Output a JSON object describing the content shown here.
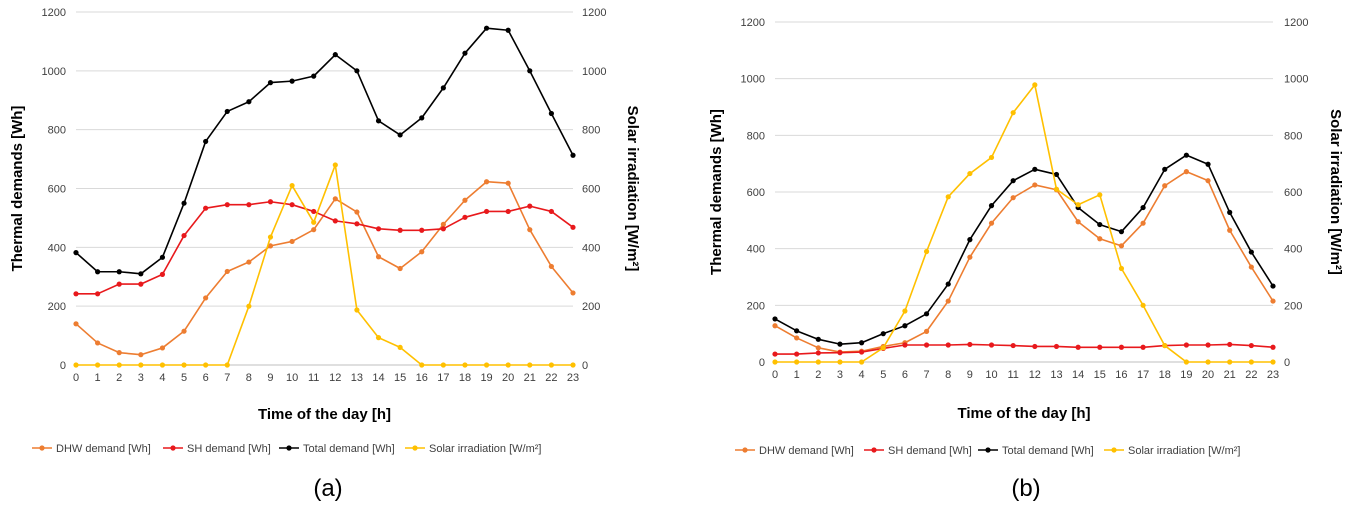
{
  "colors": {
    "dhw": "#ed7d31",
    "sh": "#e8191c",
    "total": "#000000",
    "solar": "#ffc000"
  },
  "chart_data": [
    {
      "type": "line",
      "panel_label": "(a)",
      "xlabel": "Time of the day [h]",
      "ylabel": "Thermal demands [Wh]",
      "y2label": "Solar irradiation [W/m²]",
      "categories": [
        "0",
        "1",
        "2",
        "3",
        "4",
        "5",
        "6",
        "7",
        "8",
        "9",
        "10",
        "11",
        "12",
        "13",
        "14",
        "15",
        "16",
        "17",
        "18",
        "19",
        "20",
        "21",
        "22",
        "23"
      ],
      "ylim": [
        0,
        1200
      ],
      "y2lim": [
        0,
        1200
      ],
      "yticks": [
        0,
        200,
        400,
        600,
        800,
        1000,
        1200
      ],
      "grid": true,
      "legend_position": "bottom",
      "series": [
        {
          "name": "DHW demand [Wh]",
          "color_key": "dhw",
          "axis": "left",
          "values": [
            140,
            75,
            42,
            35,
            58,
            115,
            228,
            318,
            350,
            405,
            420,
            460,
            565,
            520,
            368,
            328,
            385,
            478,
            560,
            623,
            618,
            460,
            335,
            245
          ]
        },
        {
          "name": "SH demand [Wh]",
          "color_key": "sh",
          "axis": "left",
          "values": [
            242,
            242,
            275,
            275,
            308,
            440,
            533,
            545,
            545,
            555,
            545,
            522,
            490,
            480,
            463,
            458,
            458,
            463,
            502,
            522,
            522,
            540,
            522,
            468
          ]
        },
        {
          "name": "Total demand [Wh]",
          "color_key": "total",
          "axis": "left",
          "values": [
            382,
            317,
            317,
            310,
            366,
            550,
            760,
            862,
            895,
            960,
            965,
            982,
            1055,
            1000,
            830,
            782,
            840,
            942,
            1060,
            1145,
            1138,
            1000,
            855,
            713
          ]
        },
        {
          "name": "Solar irradiation [W/m²]",
          "color_key": "solar",
          "axis": "right",
          "values": [
            0,
            0,
            0,
            0,
            0,
            0,
            0,
            0,
            200,
            435,
            610,
            485,
            680,
            187,
            93,
            60,
            0,
            0,
            0,
            0,
            0,
            0,
            0,
            0
          ]
        }
      ]
    },
    {
      "type": "line",
      "panel_label": "(b)",
      "xlabel": "Time of the day [h]",
      "ylabel": "Thermal demands [Wh]",
      "y2label": "Solar irradiation [W/m²]",
      "categories": [
        "0",
        "1",
        "2",
        "3",
        "4",
        "5",
        "6",
        "7",
        "8",
        "9",
        "10",
        "11",
        "12",
        "13",
        "14",
        "15",
        "16",
        "17",
        "18",
        "19",
        "20",
        "21",
        "22",
        "23"
      ],
      "ylim": [
        0,
        1200
      ],
      "y2lim": [
        0,
        1200
      ],
      "yticks": [
        0,
        200,
        400,
        600,
        800,
        1000,
        1200
      ],
      "grid": true,
      "legend_position": "bottom",
      "series": [
        {
          "name": "DHW demand [Wh]",
          "color_key": "dhw",
          "axis": "left",
          "values": [
            128,
            85,
            50,
            35,
            38,
            55,
            68,
            108,
            215,
            370,
            490,
            580,
            625,
            608,
            495,
            435,
            410,
            490,
            622,
            672,
            640,
            465,
            335,
            215
          ]
        },
        {
          "name": "SH demand [Wh]",
          "color_key": "sh",
          "axis": "left",
          "values": [
            28,
            28,
            32,
            33,
            35,
            48,
            60,
            60,
            60,
            62,
            60,
            58,
            55,
            55,
            52,
            52,
            52,
            52,
            58,
            60,
            60,
            62,
            58,
            52
          ]
        },
        {
          "name": "Total demand [Wh]",
          "color_key": "total",
          "axis": "left",
          "values": [
            152,
            110,
            80,
            63,
            68,
            100,
            128,
            170,
            275,
            432,
            552,
            640,
            680,
            662,
            545,
            485,
            460,
            545,
            680,
            730,
            698,
            528,
            388,
            268
          ]
        },
        {
          "name": "Solar irradiation [W/m²]",
          "color_key": "solar",
          "axis": "right",
          "values": [
            0,
            0,
            0,
            0,
            0,
            50,
            180,
            390,
            583,
            665,
            722,
            880,
            978,
            610,
            555,
            590,
            330,
            200,
            58,
            0,
            0,
            0,
            0,
            0
          ]
        }
      ]
    }
  ]
}
